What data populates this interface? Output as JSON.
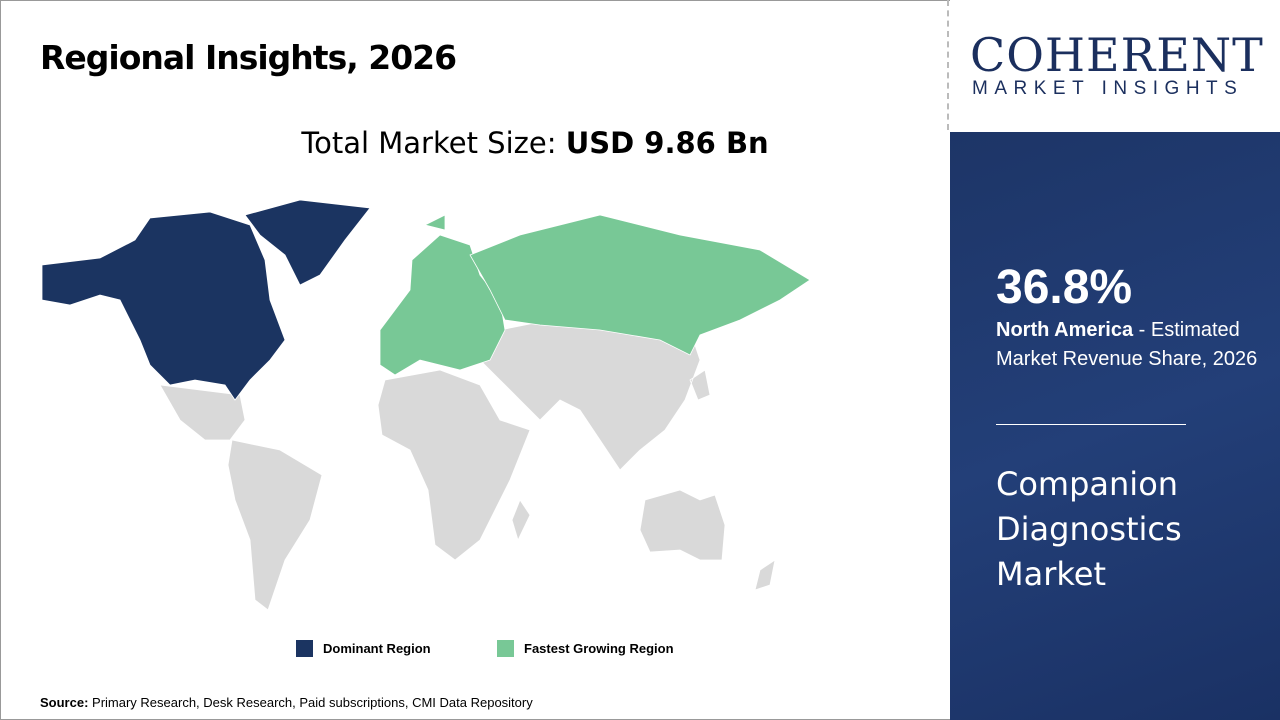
{
  "title": "Regional Insights, 2026",
  "total_market": {
    "label": "Total Market Size: ",
    "value": "USD 9.86 Bn"
  },
  "logo": {
    "top": "COHERENT",
    "bottom": "MARKET INSIGHTS"
  },
  "highlight": {
    "percent": "36.8%",
    "region": "North America",
    "description": " - Estimated Market Revenue Share, 2026"
  },
  "market_name": "Companion Diagnostics Market",
  "legend": [
    {
      "label": "Dominant Region",
      "color": "#1b3461"
    },
    {
      "label": "Fastest Growing Region",
      "color": "#78c896"
    }
  ],
  "map": {
    "dominant": "North America",
    "fastest_growing": "Europe",
    "other_color": "#d9d9d9"
  },
  "source": {
    "label": "Source:",
    "text": " Primary Research, Desk Research, Paid subscriptions, CMI Data Repository"
  }
}
